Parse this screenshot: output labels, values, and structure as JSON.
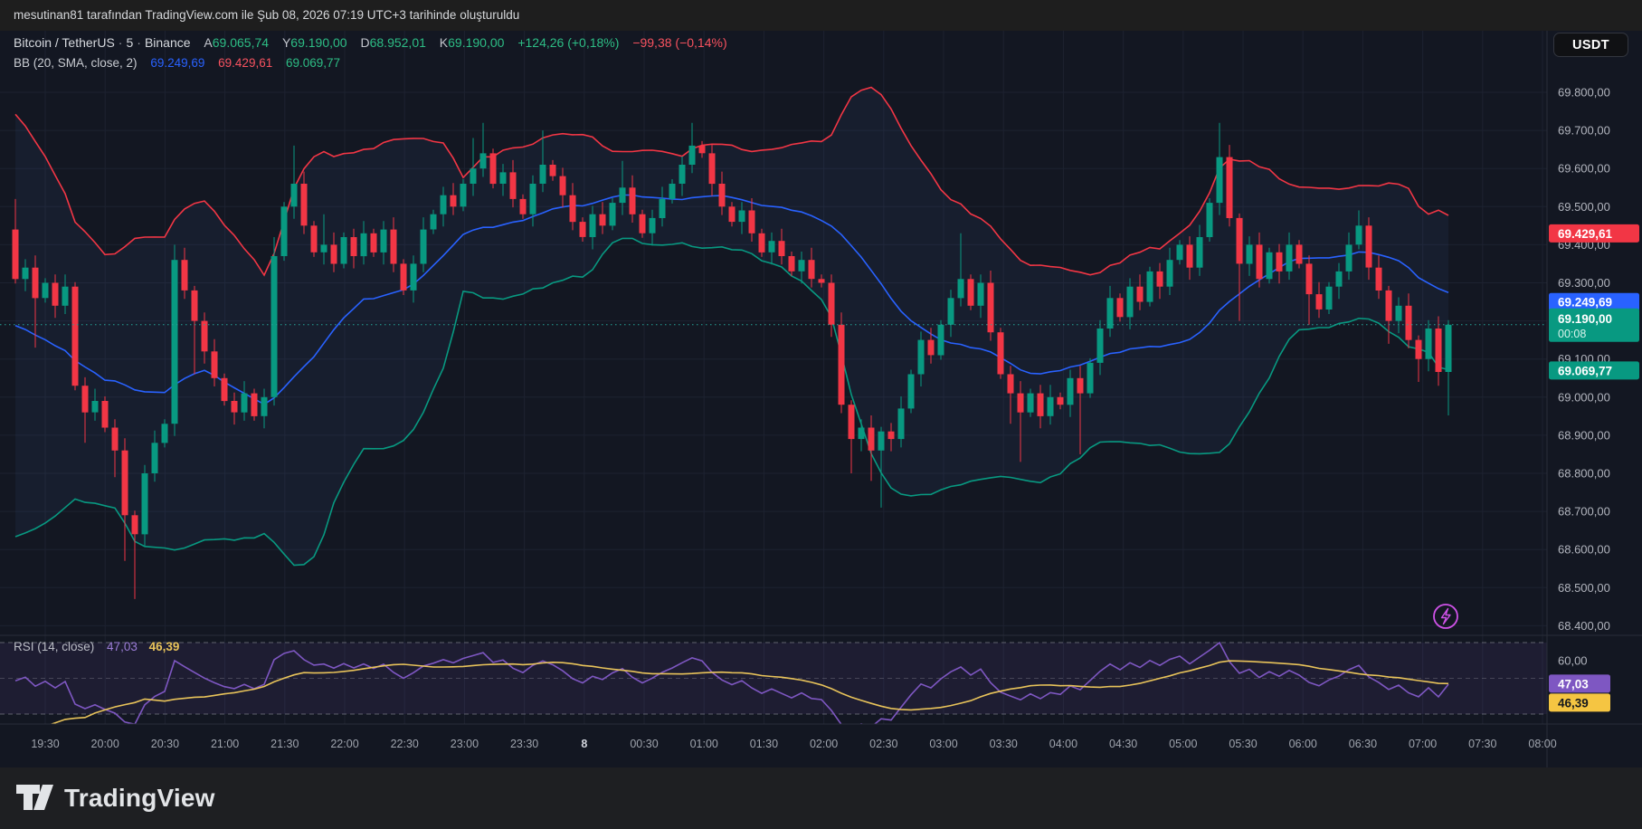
{
  "header": {
    "attribution": "mesutinan81 tarafından TradingView.com ile Şub 08, 2026 07:19 UTC+3 tarihinde oluşturuldu"
  },
  "symbol_row": {
    "title": "Bitcoin / TetherUS",
    "interval": "5",
    "exchange": "Binance",
    "dot": "·",
    "pairs": [
      {
        "k": "A",
        "v": "69.065,74"
      },
      {
        "k": "Y",
        "v": "69.190,00"
      },
      {
        "k": "D",
        "v": "68.952,01"
      },
      {
        "k": "K",
        "v": "69.190,00"
      }
    ],
    "change_positive": "+124,26 (+0,18%)",
    "change_negative": "−99,38 (−0,14%)"
  },
  "bb_row": {
    "label": "BB (20, SMA, close, 2)",
    "basis": "69.249,69",
    "upper": "69.429,61",
    "lower": "69.069,77"
  },
  "currency_button": "USDT",
  "price_axis": {
    "labels": [
      {
        "value": 69800,
        "text": "69.800,00"
      },
      {
        "value": 69700,
        "text": "69.700,00"
      },
      {
        "value": 69600,
        "text": "69.600,00"
      },
      {
        "value": 69500,
        "text": "69.500,00"
      },
      {
        "value": 69400,
        "text": "69.400,00"
      },
      {
        "value": 69300,
        "text": "69.300,00"
      },
      {
        "value": 69200,
        "text": "69.200,00"
      },
      {
        "value": 69100,
        "text": "69.100,00"
      },
      {
        "value": 69000,
        "text": "69.000,00"
      },
      {
        "value": 68900,
        "text": "68.900,00"
      },
      {
        "value": 68800,
        "text": "68.800,00"
      },
      {
        "value": 68700,
        "text": "68.700,00"
      },
      {
        "value": 68600,
        "text": "68.600,00"
      },
      {
        "value": 68500,
        "text": "68.500,00"
      },
      {
        "value": 68400,
        "text": "68.400,00"
      }
    ],
    "badges": [
      {
        "text": "69.429,61",
        "price": 69429.61,
        "color": "#f23645",
        "name": "bb-upper-badge"
      },
      {
        "text": "69.249,69",
        "price": 69249.69,
        "color": "#2962ff",
        "name": "bb-basis-badge"
      },
      {
        "text": "69.069,77",
        "price": 69069.77,
        "color": "#089981",
        "name": "bb-lower-badge"
      }
    ],
    "current": {
      "text": "69.190,00",
      "price": 69190,
      "countdown": "00:08",
      "color": "#089981"
    }
  },
  "time_axis": {
    "labels": [
      {
        "m": 0,
        "text": "19:30"
      },
      {
        "m": 30,
        "text": "20:00"
      },
      {
        "m": 60,
        "text": "20:30"
      },
      {
        "m": 90,
        "text": "21:00"
      },
      {
        "m": 120,
        "text": "21:30"
      },
      {
        "m": 150,
        "text": "22:00"
      },
      {
        "m": 180,
        "text": "22:30"
      },
      {
        "m": 210,
        "text": "23:00"
      },
      {
        "m": 240,
        "text": "23:30"
      },
      {
        "m": 270,
        "text": "8",
        "bold": true
      },
      {
        "m": 300,
        "text": "00:30"
      },
      {
        "m": 330,
        "text": "01:00"
      },
      {
        "m": 360,
        "text": "01:30"
      },
      {
        "m": 390,
        "text": "02:00"
      },
      {
        "m": 420,
        "text": "02:30"
      },
      {
        "m": 450,
        "text": "03:00"
      },
      {
        "m": 480,
        "text": "03:30"
      },
      {
        "m": 510,
        "text": "04:00"
      },
      {
        "m": 540,
        "text": "04:30"
      },
      {
        "m": 570,
        "text": "05:00"
      },
      {
        "m": 600,
        "text": "05:30"
      },
      {
        "m": 630,
        "text": "06:00"
      },
      {
        "m": 660,
        "text": "06:30"
      },
      {
        "m": 690,
        "text": "07:00"
      },
      {
        "m": 720,
        "text": "07:30"
      },
      {
        "m": 750,
        "text": "08:00"
      }
    ]
  },
  "rsi_pane": {
    "label": "RSI (14, close)",
    "value": "47,03",
    "ma_value": "46,39",
    "axis_label": {
      "value": 60,
      "text": "60,00"
    },
    "levels": [
      70,
      50,
      30
    ],
    "badges": [
      {
        "text": "47,03",
        "value": 47.03,
        "color": "#7e57c2",
        "text_color": "#ffffff",
        "name": "rsi-badge"
      },
      {
        "text": "46,39",
        "value": 46.39,
        "color": "#f5c542",
        "text_color": "#16181d",
        "name": "rsi-ma-badge"
      }
    ]
  },
  "footer": {
    "brand": "TradingView"
  },
  "colors": {
    "bg": "#131722",
    "grid": "#1d2230",
    "separator": "#2a2e39",
    "up": "#089981",
    "down": "#f23645",
    "bb_upper": "#f23645",
    "bb_mid": "#2962ff",
    "bb_lower": "#089981",
    "bb_fill": "rgba(76,110,189,0.08)",
    "current_line": "#26a69a",
    "rsi_line": "#7e57c2",
    "rsi_ma_line": "#e8c35a",
    "rsi_band": "rgba(126,87,194,0.10)",
    "rsi_dash": "#787b86",
    "axis_text": "#b2b5be",
    "legend_up": "#2dbd85",
    "legend_down": "#f7525f",
    "lightning": "#cf52e8"
  },
  "chart_data": {
    "type": "candlestick",
    "symbol": "BTCUSDT",
    "description": "Bitcoin / TetherUS, 5 minute, Binance, with BB(20,SMA,close,2) and RSI(14,close)+SMA14",
    "interval_minutes": 5,
    "time_range": [
      "19:15",
      "07:20"
    ],
    "price_axis_range": [
      68400,
      69800
    ],
    "first_open": 69440,
    "pre_closes": [
      69550,
      69550,
      69550,
      69550,
      69550,
      69550,
      69550,
      69300,
      69300,
      69300,
      68900,
      68900,
      68900,
      68900,
      68900,
      68950,
      68950,
      68950,
      68950,
      68950
    ],
    "closes": [
      69310,
      69340,
      69260,
      69300,
      69240,
      69290,
      69030,
      68960,
      68990,
      68920,
      68860,
      68690,
      68640,
      68800,
      68880,
      68930,
      69360,
      69280,
      69200,
      69120,
      69050,
      68990,
      68960,
      69010,
      68950,
      69000,
      69370,
      69500,
      69560,
      69450,
      69380,
      69400,
      69350,
      69420,
      69370,
      69430,
      69380,
      69440,
      69350,
      69280,
      69350,
      69440,
      69480,
      69530,
      69500,
      69560,
      69600,
      69640,
      69560,
      69590,
      69520,
      69480,
      69560,
      69610,
      69580,
      69530,
      69460,
      69420,
      69480,
      69450,
      69510,
      69550,
      69480,
      69430,
      69470,
      69520,
      69560,
      69610,
      69660,
      69640,
      69560,
      69500,
      69460,
      69490,
      69430,
      69380,
      69410,
      69370,
      69330,
      69360,
      69310,
      69300,
      69190,
      68980,
      68890,
      68920,
      68860,
      68910,
      68890,
      68970,
      69060,
      69150,
      69110,
      69190,
      69260,
      69310,
      69240,
      69300,
      69170,
      69060,
      69010,
      68960,
      69010,
      68950,
      69000,
      68980,
      69050,
      69010,
      69090,
      69180,
      69260,
      69210,
      69290,
      69250,
      69330,
      69290,
      69360,
      69400,
      69340,
      69420,
      69510,
      69630,
      69470,
      69350,
      69400,
      69310,
      69380,
      69330,
      69400,
      69350,
      69270,
      69230,
      69290,
      69330,
      69400,
      69450,
      69340,
      69280,
      69200,
      69240,
      69150,
      69100,
      69180,
      69066,
      69190
    ],
    "spike_lows": {
      "2": 69130,
      "7": 68880,
      "10": 68790,
      "11": 68570,
      "12": 68470,
      "18": 69060,
      "84": 68800,
      "86": 68780,
      "87": 68710,
      "100": 68930,
      "101": 68830,
      "107": 68850,
      "123": 69200,
      "130": 69190,
      "138": 69140,
      "141": 69040,
      "143": 69030,
      "144": 68952
    },
    "spike_highs": {
      "0": 69520,
      "16": 69400,
      "26": 69420,
      "28": 69660,
      "31": 69480,
      "46": 69680,
      "47": 69720,
      "53": 69700,
      "61": 69620,
      "68": 69720,
      "95": 69430,
      "121": 69720,
      "135": 69490
    },
    "last_bar": {
      "open": 69065.74,
      "high": 69190.0,
      "low": 68952.01,
      "close": 69190.0
    }
  }
}
